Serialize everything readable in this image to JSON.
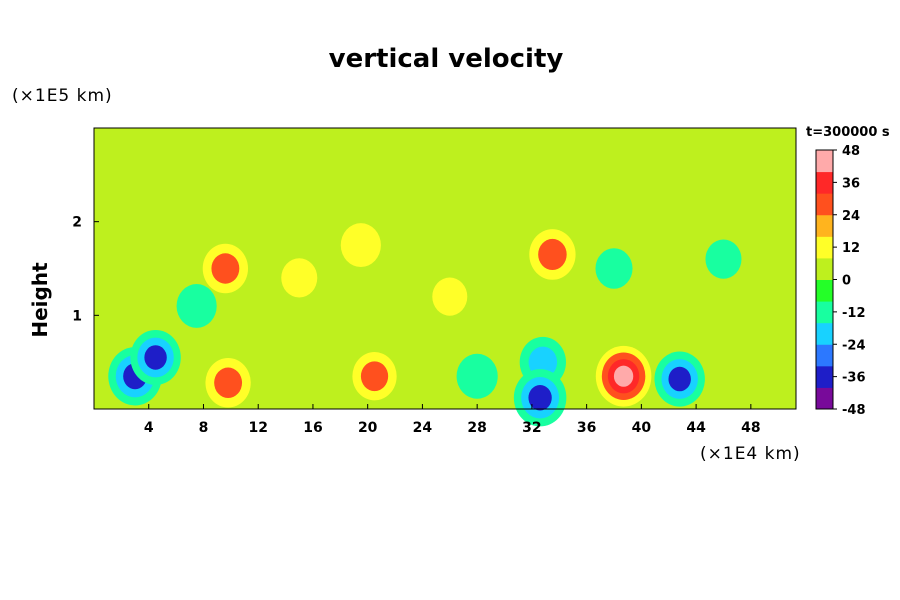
{
  "chart_data": {
    "type": "heatmap",
    "title": "vertical velocity",
    "ylabel": "Height",
    "y_unit": "(×1E5 km)",
    "x_unit": "(×1E4 km)",
    "time_label": "t=300000 s",
    "x_ticks": [
      "4",
      "8",
      "12",
      "16",
      "20",
      "24",
      "28",
      "32",
      "36",
      "40",
      "44",
      "48"
    ],
    "y_ticks": [
      "1",
      "2"
    ],
    "xlim": [
      0,
      51.3
    ],
    "ylim": [
      0,
      3.0
    ],
    "background_value": 0,
    "colorbar": {
      "ticks": [
        "48",
        "36",
        "24",
        "12",
        "0",
        "-12",
        "-24",
        "-36",
        "-48"
      ],
      "range": [
        -48,
        48
      ],
      "colors": [
        "#780a9a",
        "#1e1ec8",
        "#2c78ff",
        "#18d2ff",
        "#18ffa0",
        "#24ff28",
        "#bef01e",
        "#ffff28",
        "#ffb41e",
        "#ff501e",
        "#ff2828",
        "#ffaaaa"
      ]
    },
    "features": [
      {
        "x": 3.0,
        "y": 0.35,
        "value": -44
      },
      {
        "x": 4.5,
        "y": 0.55,
        "value": -38
      },
      {
        "x": 9.8,
        "y": 0.28,
        "value": 28
      },
      {
        "x": 20.5,
        "y": 0.35,
        "value": 26
      },
      {
        "x": 38.7,
        "y": 0.35,
        "value": 48
      },
      {
        "x": 42.8,
        "y": 0.32,
        "value": -38
      },
      {
        "x": 32.8,
        "y": 0.5,
        "value": -30
      },
      {
        "x": 32.6,
        "y": 0.12,
        "value": -42
      },
      {
        "x": 28.0,
        "y": 0.35,
        "value": -20
      },
      {
        "x": 33.5,
        "y": 1.65,
        "value": 30
      },
      {
        "x": 9.6,
        "y": 1.5,
        "value": 28
      },
      {
        "x": 19.5,
        "y": 1.75,
        "value": 18
      },
      {
        "x": 15.0,
        "y": 1.4,
        "value": 10
      },
      {
        "x": 26.0,
        "y": 1.2,
        "value": 8
      },
      {
        "x": 38.0,
        "y": 1.5,
        "value": -12
      },
      {
        "x": 7.5,
        "y": 1.1,
        "value": -18
      },
      {
        "x": 46.0,
        "y": 1.6,
        "value": -10
      }
    ]
  }
}
